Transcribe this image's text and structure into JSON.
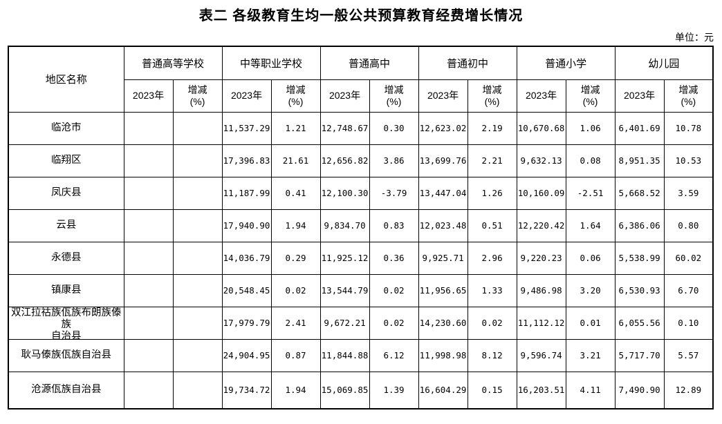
{
  "title": "表二 各级教育生均一般公共预算教育经费增长情况",
  "unit_label": "单位：元",
  "table": {
    "region_header": "地区名称",
    "year_header": "2023年",
    "change_header": "增减\n(%)",
    "groups": [
      {
        "label": "普通高等学校"
      },
      {
        "label": "中等职业学校"
      },
      {
        "label": "普通高中"
      },
      {
        "label": "普通初中"
      },
      {
        "label": "普通小学"
      },
      {
        "label": "幼儿园"
      }
    ],
    "rows": [
      {
        "region": "临沧市",
        "values": [
          "",
          "",
          "11,537.29",
          "1.21",
          "12,748.67",
          "0.30",
          "12,623.02",
          "2.19",
          "10,670.68",
          "1.06",
          "6,401.69",
          "10.78"
        ]
      },
      {
        "region": "临翔区",
        "values": [
          "",
          "",
          "17,396.83",
          "21.61",
          "12,656.82",
          "3.86",
          "13,699.76",
          "2.21",
          "9,632.13",
          "0.08",
          "8,951.35",
          "10.53"
        ]
      },
      {
        "region": "凤庆县",
        "values": [
          "",
          "",
          "11,187.99",
          "0.41",
          "12,100.30",
          "-3.79",
          "13,447.04",
          "1.26",
          "10,160.09",
          "-2.51",
          "5,668.52",
          "3.59"
        ]
      },
      {
        "region": "云县",
        "values": [
          "",
          "",
          "17,940.90",
          "1.94",
          "9,834.70",
          "0.83",
          "12,023.48",
          "0.51",
          "12,220.42",
          "1.64",
          "6,386.06",
          "0.80"
        ]
      },
      {
        "region": "永德县",
        "values": [
          "",
          "",
          "14,036.79",
          "0.29",
          "11,925.12",
          "0.36",
          "9,925.71",
          "2.96",
          "9,220.23",
          "0.06",
          "5,538.99",
          "60.02"
        ]
      },
      {
        "region": "镇康县",
        "values": [
          "",
          "",
          "20,548.45",
          "0.02",
          "13,544.79",
          "0.02",
          "11,956.65",
          "1.33",
          "9,486.98",
          "3.20",
          "6,530.93",
          "6.70"
        ]
      },
      {
        "region": "双江拉祜族佤族布朗族傣族\n自治县",
        "values": [
          "",
          "",
          "17,979.79",
          "2.41",
          "9,672.21",
          "0.02",
          "14,230.60",
          "0.02",
          "11,112.12",
          "0.01",
          "6,055.56",
          "0.10"
        ]
      },
      {
        "region": "耿马傣族佤族自治县",
        "values": [
          "",
          "",
          "24,904.95",
          "0.87",
          "11,844.88",
          "6.12",
          "11,998.98",
          "8.12",
          "9,596.74",
          "3.21",
          "5,717.70",
          "5.57"
        ]
      },
      {
        "region": "沧源佤族自治县",
        "values": [
          "",
          "",
          "19,734.72",
          "1.94",
          "15,069.85",
          "1.39",
          "16,604.29",
          "0.15",
          "16,203.51",
          "4.11",
          "7,490.90",
          "12.89"
        ]
      }
    ]
  }
}
